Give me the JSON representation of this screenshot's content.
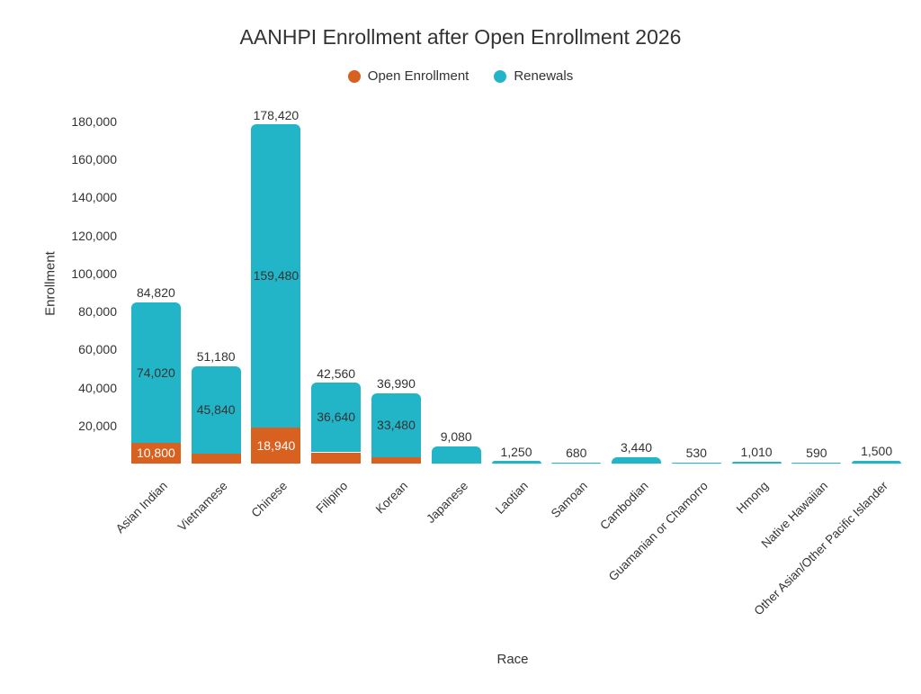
{
  "chart_data": {
    "type": "bar",
    "stacked": true,
    "title": "AANHPI Enrollment after Open Enrollment 2026",
    "xlabel": "Race",
    "ylabel": "Enrollment",
    "legend_position": "top-center",
    "grid": false,
    "background": "#ffffff",
    "text_color": "#333333",
    "ylim": [
      0,
      188000
    ],
    "yticks": [
      {
        "value": 20000,
        "label": "20,000"
      },
      {
        "value": 40000,
        "label": "40,000"
      },
      {
        "value": 60000,
        "label": "60,000"
      },
      {
        "value": 80000,
        "label": "80,000"
      },
      {
        "value": 100000,
        "label": "100,000"
      },
      {
        "value": 120000,
        "label": "120,000"
      },
      {
        "value": 140000,
        "label": "140,000"
      },
      {
        "value": 160000,
        "label": "160,000"
      },
      {
        "value": 180000,
        "label": "180,000"
      }
    ],
    "categories": [
      "Asian Indian",
      "Vietnamese",
      "Chinese",
      "Filipino",
      "Korean",
      "Japanese",
      "Laotian",
      "Samoan",
      "Cambodian",
      "Guamanian or Chamorro",
      "Hmong",
      "Native Hawaiian",
      "Other Asian/Other Pacific Islander"
    ],
    "series": [
      {
        "name": "Open Enrollment",
        "color": "#d9611f",
        "inside_label_color": "#ffffff",
        "values": [
          10800,
          5340,
          18940,
          5920,
          3510,
          0,
          0,
          0,
          0,
          0,
          0,
          0,
          0
        ],
        "inside_labels": [
          "10,800",
          null,
          "18,940",
          null,
          null,
          null,
          null,
          null,
          null,
          null,
          null,
          null,
          null
        ]
      },
      {
        "name": "Renewals",
        "color": "#22b5c8",
        "inside_label_color": "#333333",
        "values": [
          74020,
          45840,
          159480,
          36640,
          33480,
          9080,
          1250,
          680,
          3440,
          530,
          1010,
          590,
          1500
        ],
        "inside_labels": [
          "74,020",
          "45,840",
          "159,480",
          "36,640",
          "33,480",
          null,
          null,
          null,
          null,
          null,
          null,
          null,
          null
        ]
      }
    ],
    "totals": [
      84820,
      51180,
      178420,
      42560,
      36990,
      9080,
      1250,
      680,
      3440,
      530,
      1010,
      590,
      1500
    ],
    "total_labels": [
      "84,820",
      "51,180",
      "178,420",
      "42,560",
      "36,990",
      "9,080",
      "1,250",
      "680",
      "3,440",
      "530",
      "1,010",
      "590",
      "1,500"
    ]
  }
}
